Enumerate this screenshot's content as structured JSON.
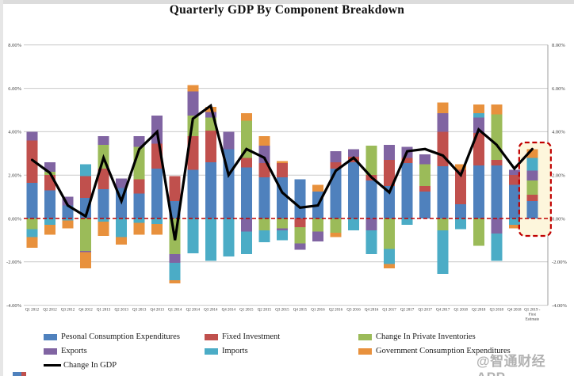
{
  "title": "Quarterly GDP By Component Breakdown",
  "watermark": "@智通财经APP",
  "axis": {
    "y_tick_labels": [
      "8.00%",
      "6.00%",
      "4.00%",
      "2.00%",
      "0.00%",
      "-2.00%",
      "-4.00%"
    ],
    "y_tick_values": [
      8,
      6,
      4,
      2,
      0,
      -2,
      -4
    ],
    "zero_line_color": "#C00000",
    "gridline_color": "#c9c9c9"
  },
  "chart_data": {
    "type": "bar",
    "stacked": true,
    "ylim": [
      -4,
      8
    ],
    "title": "Quarterly GDP By Component Breakdown",
    "xlabel": "",
    "ylabel": "",
    "grid": true,
    "legend_position": "bottom",
    "categories": [
      "Q1 2012",
      "Q2 2012",
      "Q3 2012",
      "Q4 2012",
      "Q1 2013",
      "Q2 2013",
      "Q3 2013",
      "Q4 2013",
      "Q1 2014",
      "Q2 2014",
      "Q3 2014",
      "Q4 2014",
      "Q1 2015",
      "Q2 2015",
      "Q3 2015",
      "Q4 2015",
      "Q1 2016",
      "Q2 2016",
      "Q3 2016",
      "Q4 2016",
      "Q1 2017",
      "Q2 2017",
      "Q3 2017",
      "Q4 2017",
      "Q1 2018",
      "Q2 2018",
      "Q3 2018",
      "Q4 2018",
      "Q1 2019 -\nFirst\nEstimate"
    ],
    "series": [
      {
        "name": "Pesonal Consumption Expenditures",
        "color": "#4F81BD",
        "values": [
          1.65,
          1.3,
          0.6,
          0.95,
          1.35,
          1.4,
          1.15,
          2.3,
          0.8,
          2.25,
          2.6,
          3.2,
          2.35,
          1.9,
          1.9,
          1.8,
          1.25,
          2.3,
          2.6,
          1.75,
          1.5,
          2.55,
          1.25,
          2.4,
          0.65,
          2.45,
          2.45,
          1.55,
          0.8
        ]
      },
      {
        "name": "Fixed Investment",
        "color": "#C0504D",
        "values": [
          1.95,
          0.7,
          0.0,
          1.0,
          0.95,
          0.0,
          0.65,
          1.15,
          1.15,
          1.55,
          1.45,
          0.0,
          0.45,
          0.65,
          0.65,
          -0.4,
          0.0,
          0.3,
          0.25,
          0.25,
          1.2,
          0.25,
          0.25,
          1.6,
          1.6,
          1.5,
          0.25,
          0.45,
          0.3
        ]
      },
      {
        "name": "Change In Private Inventories",
        "color": "#9BBB59",
        "values": [
          -0.5,
          0.15,
          0.0,
          -1.5,
          1.1,
          0.0,
          1.5,
          0.0,
          -1.65,
          0.95,
          0.6,
          0.0,
          1.7,
          -0.55,
          -0.45,
          -0.75,
          -0.6,
          -0.65,
          0.0,
          1.35,
          -1.4,
          0.0,
          1.0,
          -0.55,
          0.0,
          -1.25,
          2.1,
          0.0,
          0.65
        ]
      },
      {
        "name": "Exports",
        "color": "#8064A2",
        "values": [
          0.4,
          0.45,
          0.4,
          -0.05,
          0.4,
          0.45,
          0.5,
          1.3,
          -0.4,
          1.1,
          0.25,
          0.8,
          -0.6,
          0.8,
          -0.1,
          -0.3,
          -0.45,
          0.5,
          0.35,
          -0.55,
          0.7,
          0.5,
          0.45,
          0.85,
          0.0,
          0.7,
          -0.7,
          0.25,
          0.45
        ]
      },
      {
        "name": "Imports",
        "color": "#4BACC6",
        "values": [
          -0.35,
          -0.3,
          -0.1,
          0.55,
          -0.15,
          -0.85,
          -0.2,
          -0.25,
          -0.8,
          -1.6,
          -1.95,
          -1.75,
          -1.05,
          -0.55,
          -0.45,
          0.0,
          0.0,
          0.0,
          -0.55,
          -1.1,
          -0.7,
          -0.3,
          0.0,
          -2.0,
          -0.5,
          0.2,
          -1.25,
          -0.3,
          0.6
        ]
      },
      {
        "name": "Government Consumption Expenditures",
        "color": "#E8913D",
        "values": [
          -0.5,
          -0.45,
          -0.35,
          -0.75,
          -0.65,
          -0.35,
          -0.55,
          -0.5,
          -0.15,
          0.3,
          0.25,
          0.0,
          0.35,
          0.45,
          0.1,
          0.0,
          0.3,
          -0.2,
          0.0,
          0.0,
          -0.2,
          0.0,
          0.0,
          0.5,
          0.25,
          0.4,
          0.45,
          -0.15,
          0.4
        ]
      }
    ],
    "line_series": {
      "name": "Change In GDP",
      "color": "#000000",
      "values": [
        2.7,
        2.1,
        0.6,
        0.1,
        2.8,
        0.8,
        3.2,
        4.0,
        -1.0,
        4.6,
        5.2,
        2.0,
        3.2,
        2.8,
        1.2,
        0.5,
        0.6,
        2.2,
        2.8,
        1.9,
        1.2,
        3.1,
        3.2,
        2.9,
        2.0,
        4.1,
        3.4,
        2.3,
        3.2
      ]
    },
    "highlight": {
      "index": 28,
      "fill": "#FDF6DC",
      "border": "#C00000",
      "style": "dashed"
    }
  },
  "legend": {
    "items": [
      {
        "label": "Pesonal Consumption Expenditures",
        "color": "#4F81BD",
        "type": "box",
        "col": 0,
        "row": 0
      },
      {
        "label": "Fixed Investment",
        "color": "#C0504D",
        "type": "box",
        "col": 1,
        "row": 0
      },
      {
        "label": "Change In Private Inventories",
        "color": "#9BBB59",
        "type": "box",
        "col": 2,
        "row": 0
      },
      {
        "label": "Exports",
        "color": "#8064A2",
        "type": "box",
        "col": 0,
        "row": 1
      },
      {
        "label": "Imports",
        "color": "#4BACC6",
        "type": "box",
        "col": 1,
        "row": 1
      },
      {
        "label": "Government Consumption Expenditures",
        "color": "#E8913D",
        "type": "box",
        "col": 2,
        "row": 1
      },
      {
        "label": "Change In GDP",
        "color": "#000000",
        "type": "line",
        "col": 0,
        "row": 2
      }
    ]
  }
}
